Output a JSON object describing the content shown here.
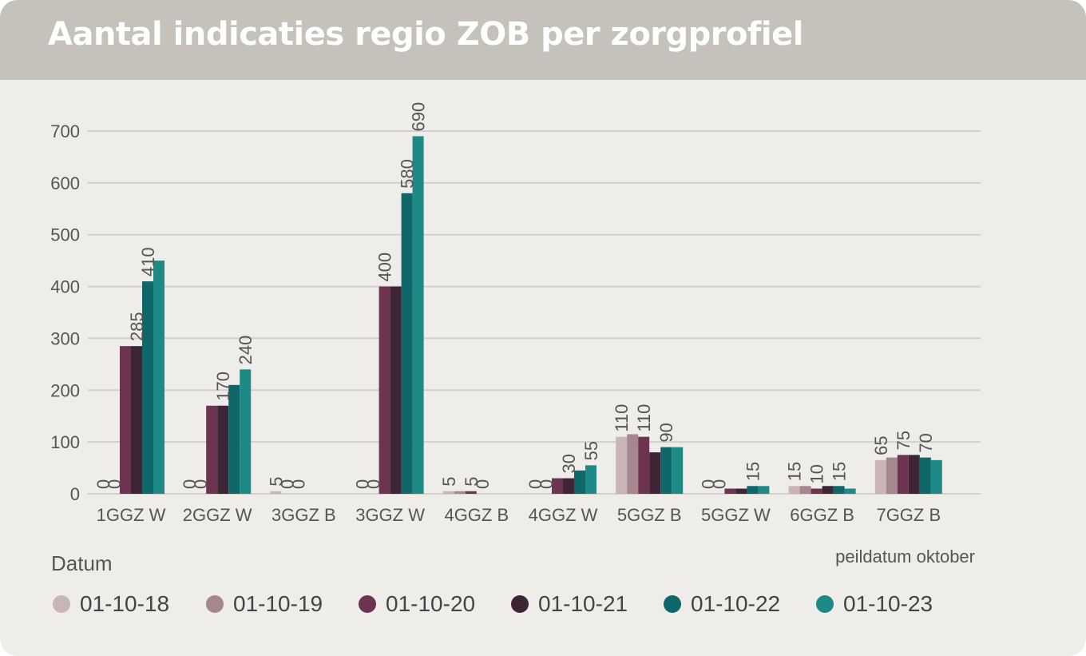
{
  "title": "Aantal indicaties regio ZOB per zorgprofiel",
  "note": "peildatum oktober",
  "legend_title": "Datum",
  "chart_data": {
    "type": "bar",
    "title": "Aantal indicaties regio ZOB per zorgprofiel",
    "xlabel": "",
    "ylabel": "",
    "ylim": [
      0,
      700
    ],
    "yticks": [
      0,
      100,
      200,
      300,
      400,
      500,
      600,
      700
    ],
    "grid": true,
    "legend_position": "bottom",
    "categories": [
      "1GGZ W",
      "2GGZ W",
      "3GGZ B",
      "3GGZ W",
      "4GGZ B",
      "4GGZ W",
      "5GGZ B",
      "5GGZ W",
      "6GGZ B",
      "7GGZ B"
    ],
    "series": [
      {
        "name": "01-10-18",
        "color": "#c9b4b8",
        "values": [
          0,
          0,
          5,
          0,
          5,
          0,
          110,
          0,
          15,
          65
        ]
      },
      {
        "name": "01-10-19",
        "color": "#a7878f",
        "values": [
          0,
          0,
          0,
          0,
          5,
          0,
          115,
          0,
          15,
          70
        ]
      },
      {
        "name": "01-10-20",
        "color": "#6c3450",
        "values": [
          285,
          170,
          0,
          400,
          5,
          30,
          110,
          10,
          10,
          75
        ]
      },
      {
        "name": "01-10-21",
        "color": "#3e2535",
        "values": [
          285,
          170,
          0,
          400,
          0,
          30,
          80,
          10,
          15,
          75
        ]
      },
      {
        "name": "01-10-22",
        "color": "#0f6769",
        "values": [
          410,
          210,
          0,
          580,
          0,
          45,
          90,
          15,
          15,
          70
        ]
      },
      {
        "name": "01-10-23",
        "color": "#1e8a86",
        "values": [
          450,
          240,
          0,
          690,
          0,
          55,
          90,
          15,
          10,
          65
        ]
      }
    ],
    "data_labels": [
      [
        {
          "series": 0,
          "text": "0"
        },
        {
          "series": 1,
          "text": "0"
        },
        {
          "series": 3,
          "text": "285"
        },
        {
          "series": 4,
          "text": "410"
        }
      ],
      [
        {
          "series": 0,
          "text": "0"
        },
        {
          "series": 1,
          "text": "0"
        },
        {
          "series": 3,
          "text": "170"
        },
        {
          "series": 5,
          "text": "240"
        }
      ],
      [
        {
          "series": 0,
          "text": "5"
        },
        {
          "series": 1,
          "text": "0"
        },
        {
          "series": 2,
          "text": "0"
        }
      ],
      [
        {
          "series": 0,
          "text": "0"
        },
        {
          "series": 1,
          "text": "0"
        },
        {
          "series": 2,
          "text": "400"
        },
        {
          "series": 4,
          "text": "580"
        },
        {
          "series": 5,
          "text": "690"
        }
      ],
      [
        {
          "series": 0,
          "text": "5"
        },
        {
          "series": 2,
          "text": "5"
        },
        {
          "series": 3,
          "text": "0"
        }
      ],
      [
        {
          "series": 0,
          "text": "0"
        },
        {
          "series": 1,
          "text": "0"
        },
        {
          "series": 3,
          "text": "30"
        },
        {
          "series": 5,
          "text": "55"
        }
      ],
      [
        {
          "series": 0,
          "text": "110"
        },
        {
          "series": 2,
          "text": "110"
        },
        {
          "series": 4,
          "text": "90"
        }
      ],
      [
        {
          "series": 0,
          "text": "0"
        },
        {
          "series": 1,
          "text": "0"
        },
        {
          "series": 4,
          "text": "15"
        }
      ],
      [
        {
          "series": 0,
          "text": "15"
        },
        {
          "series": 2,
          "text": "10"
        },
        {
          "series": 4,
          "text": "15"
        }
      ],
      [
        {
          "series": 0,
          "text": "65"
        },
        {
          "series": 2,
          "text": "75"
        },
        {
          "series": 4,
          "text": "70"
        }
      ]
    ]
  }
}
